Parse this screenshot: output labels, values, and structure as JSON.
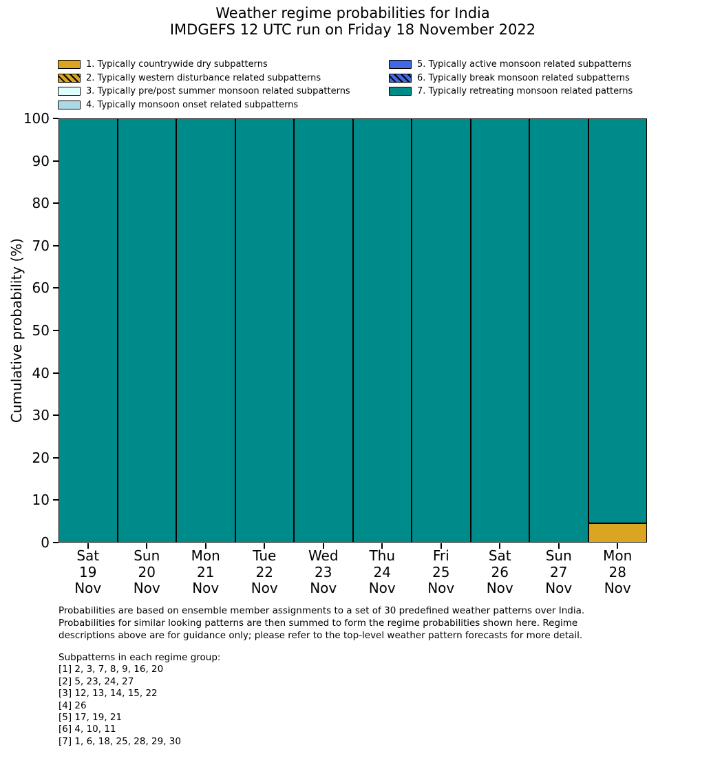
{
  "chart_data": {
    "type": "bar",
    "stacked": true,
    "title": "Weather regime probabilities for India",
    "subtitle": "IMDGEFS 12 UTC run on Friday 18 November 2022",
    "ylabel": "Cumulative probability (%)",
    "ylim": [
      0,
      100
    ],
    "yticks": [
      0,
      10,
      20,
      30,
      40,
      50,
      60,
      70,
      80,
      90,
      100
    ],
    "grid": false,
    "legend_position": "top, two columns, no frame",
    "bar_edge_color": "#000000",
    "categories": [
      {
        "weekday": "Sat",
        "day": "19",
        "month": "Nov"
      },
      {
        "weekday": "Sun",
        "day": "20",
        "month": "Nov"
      },
      {
        "weekday": "Mon",
        "day": "21",
        "month": "Nov"
      },
      {
        "weekday": "Tue",
        "day": "22",
        "month": "Nov"
      },
      {
        "weekday": "Wed",
        "day": "23",
        "month": "Nov"
      },
      {
        "weekday": "Thu",
        "day": "24",
        "month": "Nov"
      },
      {
        "weekday": "Fri",
        "day": "25",
        "month": "Nov"
      },
      {
        "weekday": "Sat",
        "day": "26",
        "month": "Nov"
      },
      {
        "weekday": "Sun",
        "day": "27",
        "month": "Nov"
      },
      {
        "weekday": "Mon",
        "day": "28",
        "month": "Nov"
      }
    ],
    "series": [
      {
        "name": "1. Typically countrywide dry subpatterns",
        "color": "#DAA520",
        "hatch": false,
        "values": [
          0,
          0,
          0,
          0,
          0,
          0,
          0,
          0,
          0,
          4.5
        ]
      },
      {
        "name": "2. Typically western disturbance related subpatterns",
        "color": "#DAA520",
        "hatch": true,
        "values": [
          0,
          0,
          0,
          0,
          0,
          0,
          0,
          0,
          0,
          0
        ]
      },
      {
        "name": "3. Typically pre/post summer monsoon related subpatterns",
        "color": "#E0FFFF",
        "hatch": false,
        "values": [
          0,
          0,
          0,
          0,
          0,
          0,
          0,
          0,
          0,
          0
        ]
      },
      {
        "name": "4. Typically monsoon onset related subpatterns",
        "color": "#ADD8E6",
        "hatch": false,
        "values": [
          0,
          0,
          0,
          0,
          0,
          0,
          0,
          0,
          0,
          0
        ]
      },
      {
        "name": "5. Typically active monsoon related subpatterns",
        "color": "#4169E1",
        "hatch": false,
        "values": [
          0,
          0,
          0,
          0,
          0,
          0,
          0,
          0,
          0,
          0
        ]
      },
      {
        "name": "6. Typically break monsoon related subpatterns",
        "color": "#4169E1",
        "hatch": true,
        "values": [
          0,
          0,
          0,
          0,
          0,
          0,
          0,
          0,
          0,
          0
        ]
      },
      {
        "name": "7. Typically retreating monsoon related patterns",
        "color": "#008B8B",
        "hatch": false,
        "values": [
          100,
          100,
          100,
          100,
          100,
          100,
          100,
          100,
          100,
          95.5
        ]
      }
    ]
  },
  "notes": {
    "description": "Probabilities are based on ensemble member assignments to a set of 30 predefined weather patterns over India.\nProbabilities for similar looking patterns are then summed to form the regime probabilities shown here. Regime\ndescriptions above are for guidance only; please refer to the top-level weather pattern forecasts for more detail.",
    "subpatterns_heading": "Subpatterns in each regime group:",
    "subpatterns": [
      "[1] 2, 3, 7, 8, 9, 16, 20",
      "[2] 5, 23, 24, 27",
      "[3] 12, 13, 14, 15, 22",
      "[4] 26",
      "[5] 17, 19, 21",
      "[6] 4, 10, 11",
      "[7] 1, 6, 18, 25, 28, 29, 30"
    ]
  }
}
